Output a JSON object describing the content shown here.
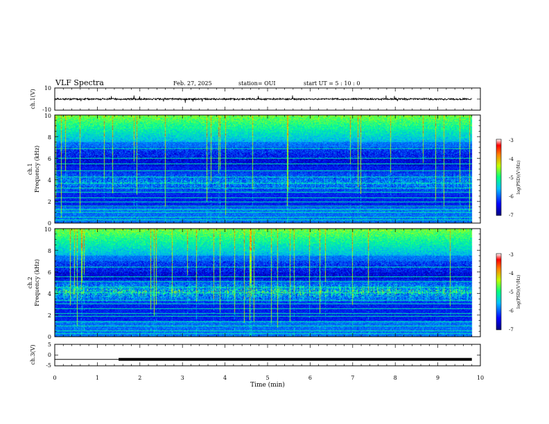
{
  "header": {
    "title": "VLF Spectra",
    "date": "Feb. 27, 2025",
    "station": "station= OUI",
    "start": "start  UT =   5  : 10 : 0"
  },
  "chart_data": [
    {
      "type": "line",
      "panel": "ch1-waveform",
      "ylabel": "ch.1(V)",
      "ylim": [
        -10,
        10
      ],
      "y_ticks": [
        "10",
        "-10"
      ],
      "xlim": [
        0,
        10
      ],
      "description_values": {
        "baseline": 0,
        "noise_amplitude": 1
      }
    },
    {
      "type": "heatmap",
      "panel": "ch1-spectrogram",
      "ylabel": [
        "ch.1",
        "Frequency  (kHz)"
      ],
      "ylim": [
        0,
        10
      ],
      "y_ticks": [
        "0",
        "2",
        "4",
        "6",
        "8",
        "10"
      ],
      "xlim": [
        0,
        10
      ],
      "colorbar": {
        "label": "log(PSD)(V²/Hz)",
        "range": [
          -7,
          -3
        ],
        "ticks": [
          "-3",
          "-4",
          "-5",
          "-6",
          "-7"
        ]
      }
    },
    {
      "type": "heatmap",
      "panel": "ch2-spectrogram",
      "ylabel": [
        "ch.2",
        "Frequency  (kHz)"
      ],
      "ylim": [
        0,
        10
      ],
      "y_ticks": [
        "0",
        "2",
        "4",
        "6",
        "8",
        "10"
      ],
      "xlim": [
        0,
        10
      ],
      "colorbar": {
        "label": "log(PSD)(V²/Hz)",
        "range": [
          -7,
          -3
        ],
        "ticks": [
          "-3",
          "-4",
          "-5",
          "-6",
          "-7"
        ]
      }
    },
    {
      "type": "line",
      "panel": "ch3-waveform",
      "ylabel": "ch.3(V)",
      "ylim": [
        -5,
        5
      ],
      "y_ticks": [
        "5",
        "0",
        "-5"
      ],
      "xlim": [
        0,
        10
      ],
      "xlabel": "Time  (min)",
      "x_ticks": [
        "0",
        "1",
        "2",
        "3",
        "4",
        "5",
        "6",
        "7",
        "8",
        "9",
        "10"
      ],
      "x": [
        0,
        1.5,
        1.5,
        9.8
      ],
      "y": [
        -2,
        -2,
        -2,
        -2
      ]
    }
  ]
}
